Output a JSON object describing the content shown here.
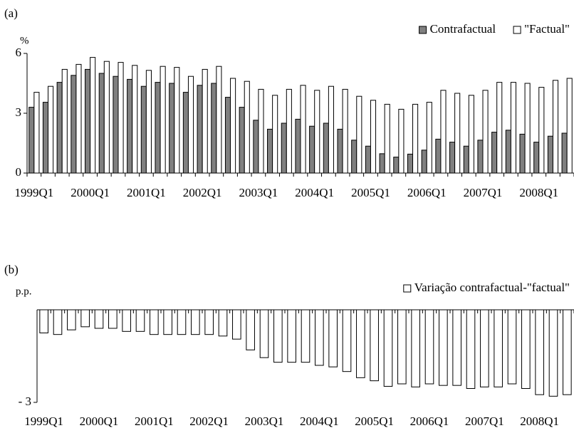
{
  "chart_data": [
    {
      "type": "bar",
      "panel_label": "(a)",
      "y_label": "%",
      "categories": [
        "1999Q1",
        null,
        null,
        null,
        "2000Q1",
        null,
        null,
        null,
        "2001Q1",
        null,
        null,
        null,
        "2002Q1",
        null,
        null,
        null,
        "2003Q1",
        null,
        null,
        null,
        "2004Q1",
        null,
        null,
        null,
        "2005Q1",
        null,
        null,
        null,
        "2006Q1",
        null,
        null,
        null,
        "2007Q1",
        null,
        null,
        null,
        "2008Q1",
        null,
        null
      ],
      "series": [
        {
          "name": "Contrafactual",
          "color": "#808080",
          "values": [
            3.3,
            3.55,
            4.55,
            4.9,
            5.2,
            5.0,
            4.85,
            4.7,
            4.35,
            4.55,
            4.5,
            4.05,
            4.4,
            4.5,
            3.8,
            3.3,
            2.65,
            2.2,
            2.5,
            2.7,
            2.35,
            2.5,
            2.2,
            1.65,
            1.35,
            0.97,
            0.8,
            0.95,
            1.15,
            1.7,
            1.55,
            1.35,
            1.65,
            2.05,
            2.15,
            1.95,
            1.55,
            1.85,
            2.0
          ]
        },
        {
          "name": "\"Factual\"",
          "color": "#ffffff",
          "values": [
            4.05,
            4.35,
            5.2,
            5.45,
            5.8,
            5.6,
            5.55,
            5.4,
            5.15,
            5.35,
            5.3,
            4.85,
            5.2,
            5.35,
            4.75,
            4.6,
            4.2,
            3.9,
            4.2,
            4.4,
            4.15,
            4.35,
            4.2,
            3.85,
            3.65,
            3.45,
            3.2,
            3.45,
            3.55,
            4.15,
            4.0,
            3.9,
            4.15,
            4.55,
            4.55,
            4.5,
            4.3,
            4.65,
            4.75
          ]
        }
      ],
      "ylim": [
        0,
        6
      ],
      "yticks": [
        0,
        3,
        6
      ],
      "legend": "upper right"
    },
    {
      "type": "bar",
      "panel_label": "(b)",
      "y_label": "p.p.",
      "categories": [
        "1999Q1",
        null,
        null,
        null,
        "2000Q1",
        null,
        null,
        null,
        "2001Q1",
        null,
        null,
        null,
        "2002Q1",
        null,
        null,
        null,
        "2003Q1",
        null,
        null,
        null,
        "2004Q1",
        null,
        null,
        null,
        "2005Q1",
        null,
        null,
        null,
        "2006Q1",
        null,
        null,
        null,
        "2007Q1",
        null,
        null,
        null,
        "2008Q1",
        null,
        null
      ],
      "series": [
        {
          "name": "Variação contrafactual-\"factual\"",
          "color": "#ffffff",
          "values": [
            -0.75,
            -0.8,
            -0.65,
            -0.55,
            -0.6,
            -0.6,
            -0.7,
            -0.7,
            -0.8,
            -0.8,
            -0.8,
            -0.8,
            -0.8,
            -0.85,
            -0.95,
            -1.3,
            -1.55,
            -1.7,
            -1.7,
            -1.7,
            -1.8,
            -1.85,
            -2.0,
            -2.2,
            -2.3,
            -2.48,
            -2.4,
            -2.5,
            -2.4,
            -2.45,
            -2.45,
            -2.55,
            -2.5,
            -2.5,
            -2.4,
            -2.55,
            -2.75,
            -2.8,
            -2.75
          ]
        }
      ],
      "ylim": [
        -3,
        0
      ],
      "yticks": [
        {
          "value": -3,
          "label": "- 3"
        }
      ],
      "legend": "upper right"
    }
  ]
}
